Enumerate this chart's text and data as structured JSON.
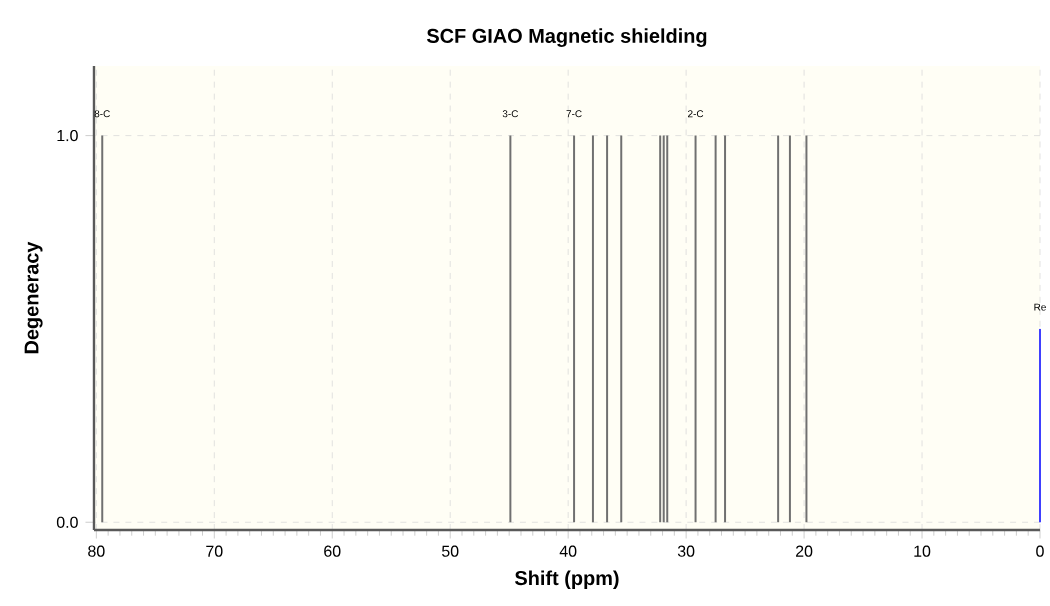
{
  "chart_data": {
    "type": "bar",
    "title": "SCF GIAO Magnetic shielding",
    "xlabel": "Shift (ppm)",
    "ylabel": "Degeneracy",
    "xlim": [
      80.2,
      0
    ],
    "ylim": [
      -0.02,
      1.18
    ],
    "xticks": [
      80,
      70,
      60,
      50,
      40,
      30,
      20,
      10,
      0
    ],
    "yticks": [
      {
        "value": 0,
        "label": "0.0"
      },
      {
        "value": 1,
        "label": "1.0"
      }
    ],
    "grid": true,
    "series": [
      {
        "color": "#707070",
        "x": [
          79.5,
          44.9,
          39.5,
          37.9,
          36.7,
          35.5,
          32.2,
          31.9,
          31.6,
          29.2,
          27.5,
          26.7,
          22.2,
          21.2,
          19.8
        ],
        "values": [
          1,
          1,
          1,
          1,
          1,
          1,
          1,
          1,
          1,
          1,
          1,
          1,
          1,
          1,
          1
        ]
      },
      {
        "color": "#4040ff",
        "x": [
          0
        ],
        "values": [
          0.5
        ]
      }
    ],
    "annotations": [
      {
        "text": "8-C",
        "x": 79.5,
        "y": 1
      },
      {
        "text": "3-C",
        "x": 44.9,
        "y": 1
      },
      {
        "text": "7-C",
        "x": 39.5,
        "y": 1
      },
      {
        "text": "2-C",
        "x": 29.2,
        "y": 1
      },
      {
        "text": "Re",
        "x": 0,
        "y": 0.5
      }
    ]
  }
}
